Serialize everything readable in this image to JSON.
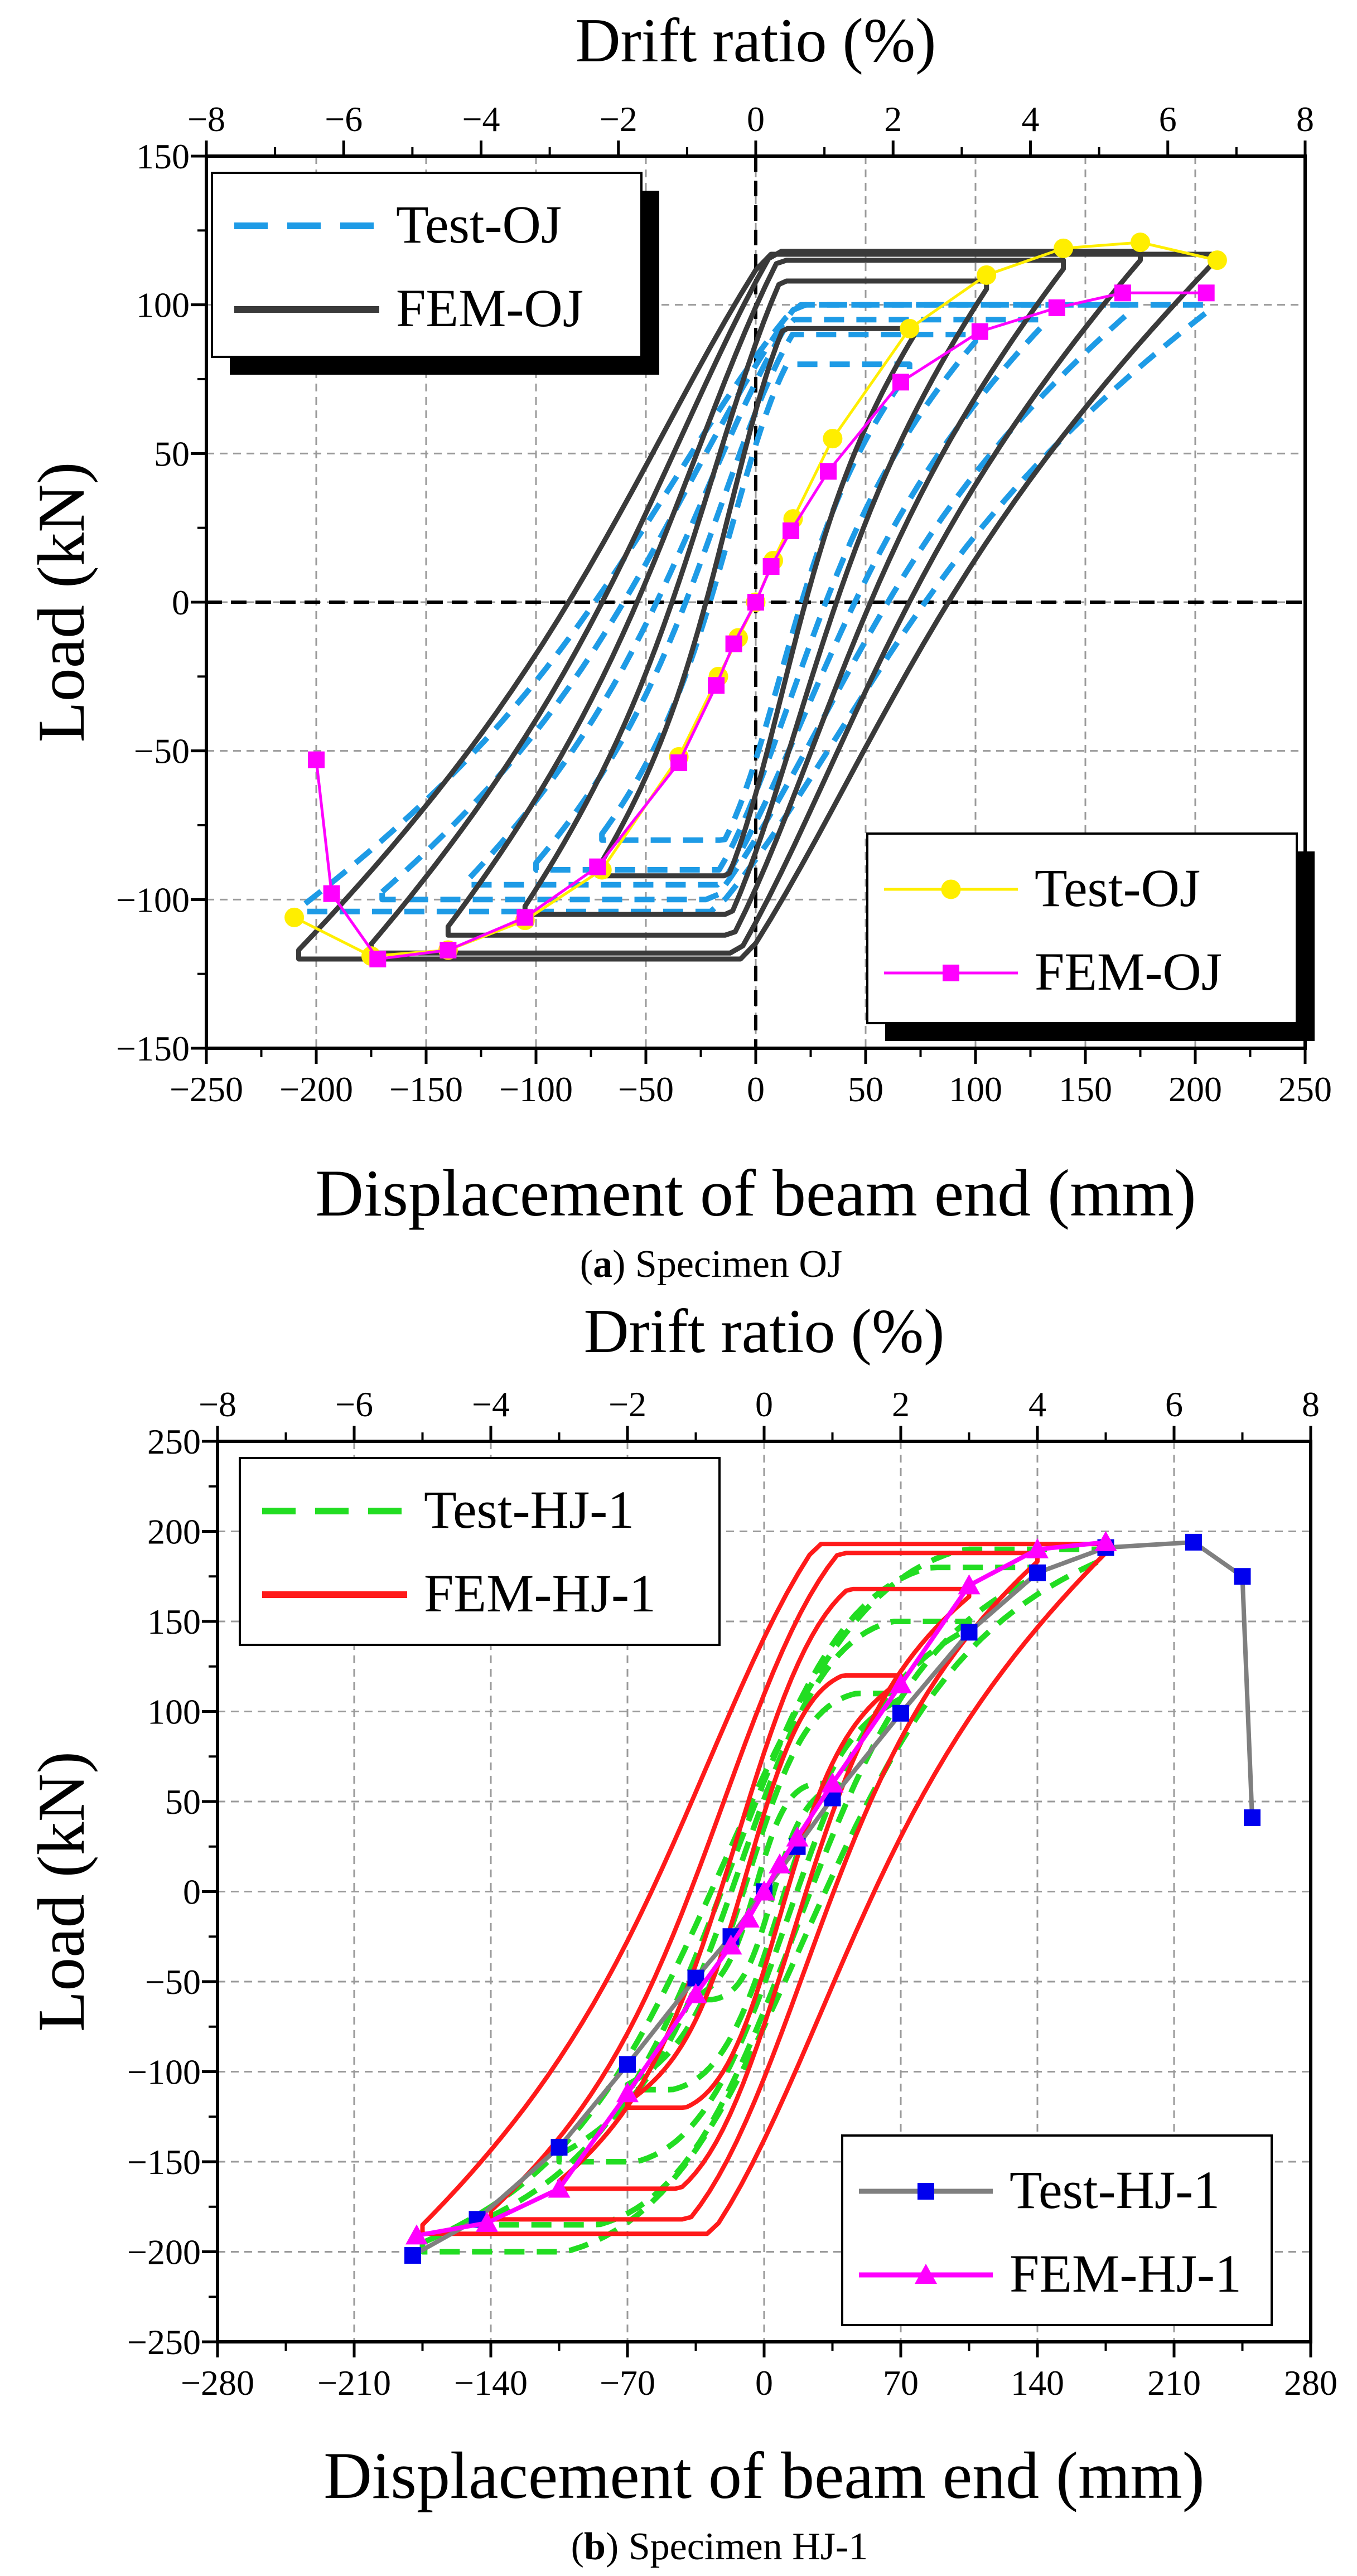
{
  "figure": {
    "panels": [
      {
        "id": "a",
        "caption_letter": "a",
        "caption_text": " Specimen OJ",
        "top_axis_label": "Drift ratio (%)",
        "xlabel": "Displacement of beam end (mm)",
        "ylabel": "Load (kN)",
        "xticks": [
          "−250",
          "−200",
          "−150",
          "−100",
          "−50",
          "0",
          "50",
          "100",
          "150",
          "200",
          "250"
        ],
        "yticks": [
          "−150",
          "−100",
          "−50",
          "0",
          "50",
          "100",
          "150"
        ],
        "top_ticks": [
          "−8",
          "−6",
          "−4",
          "−2",
          "0",
          "2",
          "4",
          "6",
          "8"
        ],
        "legend_loops": [
          "Test-OJ",
          "FEM-OJ"
        ],
        "legend_skeleton": [
          "Test-OJ",
          "FEM-OJ"
        ]
      },
      {
        "id": "b",
        "caption_letter": "b",
        "caption_text": " Specimen HJ-1",
        "top_axis_label": "Drift ratio (%)",
        "xlabel": "Displacement of beam end (mm)",
        "ylabel": "Load (kN)",
        "xticks": [
          "−280",
          "−210",
          "−140",
          "−70",
          "0",
          "70",
          "140",
          "210",
          "280"
        ],
        "yticks": [
          "−250",
          "−200",
          "−150",
          "−100",
          "−50",
          "0",
          "50",
          "100",
          "150",
          "200",
          "250"
        ],
        "top_ticks": [
          "−8",
          "−6",
          "−4",
          "−2",
          "0",
          "2",
          "4",
          "6",
          "8"
        ],
        "legend_loops": [
          "Test-HJ-1",
          "FEM-HJ-1"
        ],
        "legend_skeleton": [
          "Test-HJ-1",
          "FEM-HJ-1"
        ]
      }
    ]
  },
  "chart_data": [
    {
      "type": "line",
      "title": "",
      "xlabel": "Displacement of beam end (mm)",
      "ylabel": "Load (kN)",
      "secondary_xlabel": "Drift ratio (%)",
      "xlim": [
        -250,
        250
      ],
      "ylim": [
        -150,
        150
      ],
      "secondary_xlim": [
        -8,
        8
      ],
      "grid": true,
      "legend_positions": [
        "top-left",
        "bottom-right"
      ],
      "colors": {
        "test_loops": "#1e9be6",
        "fem_loops": "#3a3a3a",
        "test_skeleton": "#ffee00",
        "fem_skeleton": "#ff00ff"
      },
      "hysteresis": {
        "Test-OJ": [
          {
            "amp": 70,
            "pmax": 80,
            "pmin": -80,
            "fy": 40
          },
          {
            "amp": 100,
            "pmax": 90,
            "pmin": -90,
            "fy": 50
          },
          {
            "amp": 130,
            "pmax": 95,
            "pmin": -95,
            "fy": 60
          },
          {
            "amp": 170,
            "pmax": 100,
            "pmin": -100,
            "fy": 65
          },
          {
            "amp": 205,
            "pmax": 100,
            "pmin": -104,
            "fy": 70
          }
        ],
        "FEM-OJ": [
          {
            "amp": 72,
            "pmax": 92,
            "pmin": -92,
            "fy": 50
          },
          {
            "amp": 105,
            "pmax": 108,
            "pmin": -105,
            "fy": 70
          },
          {
            "amp": 140,
            "pmax": 115,
            "pmin": -112,
            "fy": 82
          },
          {
            "amp": 175,
            "pmax": 118,
            "pmin": -118,
            "fy": 92
          },
          {
            "amp": 208,
            "pmax": 117,
            "pmin": -120,
            "fy": 98
          }
        ]
      },
      "series": [
        {
          "name": "Test-OJ",
          "marker": "circle",
          "x": [
            -210,
            -175,
            -140,
            -105,
            -70,
            -35,
            -17,
            -8,
            0,
            8,
            17,
            35,
            70,
            105,
            140,
            175,
            210
          ],
          "y": [
            -106,
            -119,
            -117,
            -107,
            -90,
            -52,
            -25,
            -12,
            0,
            14,
            28,
            55,
            92,
            110,
            119,
            121,
            115
          ]
        },
        {
          "name": "FEM-OJ",
          "marker": "square",
          "x": [
            -200,
            -193,
            -172,
            -140,
            -105,
            -72,
            -35,
            -18,
            -10,
            0,
            7,
            16,
            33,
            66,
            102,
            137,
            167,
            205
          ],
          "y": [
            -53,
            -98,
            -120,
            -117,
            -106,
            -89,
            -54,
            -28,
            -14,
            0,
            12,
            24,
            44,
            74,
            91,
            99,
            104,
            104
          ]
        }
      ]
    },
    {
      "type": "line",
      "title": "",
      "xlabel": "Displacement of beam end (mm)",
      "ylabel": "Load (kN)",
      "secondary_xlabel": "Drift ratio (%)",
      "xlim": [
        -280,
        280
      ],
      "ylim": [
        -250,
        250
      ],
      "secondary_xlim": [
        -8,
        8
      ],
      "grid": true,
      "legend_positions": [
        "top-left",
        "bottom-right"
      ],
      "colors": {
        "test_loops": "#22dd22",
        "fem_loops": "#ff1a1a",
        "test_skeleton": "#7f7f7f",
        "fem_skeleton": "#ff00ff"
      },
      "hysteresis": {
        "Test-HJ-1": [
          {
            "amp": 35,
            "pmax": 60,
            "pmin": -60,
            "fy": 6
          },
          {
            "amp": 70,
            "pmax": 110,
            "pmin": -110,
            "fy": 14
          },
          {
            "amp": 105,
            "pmax": 150,
            "pmin": -150,
            "fy": 22
          },
          {
            "amp": 140,
            "pmax": 180,
            "pmin": -185,
            "fy": 28
          },
          {
            "amp": 175,
            "pmax": 190,
            "pmin": -200,
            "fy": 32
          }
        ],
        "FEM-HJ-1": [
          {
            "amp": 70,
            "pmax": 120,
            "pmin": -120,
            "fy": 20
          },
          {
            "amp": 105,
            "pmax": 168,
            "pmin": -165,
            "fy": 45
          },
          {
            "amp": 140,
            "pmax": 188,
            "pmin": -182,
            "fy": 75
          },
          {
            "amp": 175,
            "pmax": 193,
            "pmin": -190,
            "fy": 110
          }
        ]
      },
      "series": [
        {
          "name": "Test-HJ-1",
          "marker": "square",
          "x": [
            -180,
            -147,
            -105,
            -70,
            -35,
            -17,
            0,
            17,
            35,
            70,
            105,
            140,
            175,
            220,
            245,
            250
          ],
          "y": [
            -202,
            -182,
            -142,
            -96,
            -48,
            -25,
            0,
            25,
            52,
            99,
            144,
            177,
            191,
            194,
            175,
            41
          ]
        },
        {
          "name": "FEM-HJ-1",
          "marker": "triangle",
          "x": [
            -178,
            -142,
            -105,
            -70,
            -35,
            -17,
            -8,
            0,
            8,
            17,
            35,
            70,
            105,
            140,
            175
          ],
          "y": [
            -191,
            -184,
            -165,
            -112,
            -57,
            -30,
            -15,
            0,
            15,
            30,
            60,
            115,
            170,
            190,
            194
          ]
        }
      ]
    }
  ]
}
